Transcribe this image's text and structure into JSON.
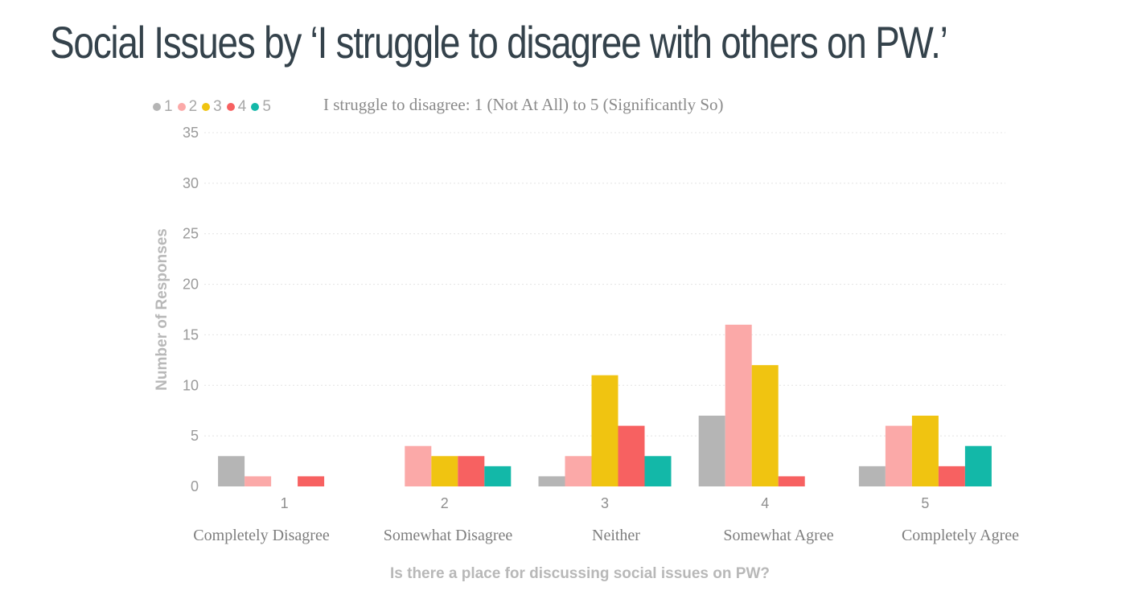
{
  "page": {
    "title": "Social Issues by ‘I struggle to disagree with others on PW.’"
  },
  "chart_data": {
    "type": "bar",
    "legend_title": "I struggle to disagree: 1 (Not At All) to 5 (Significantly So)",
    "legend_position": "top-left",
    "categories": [
      "1",
      "2",
      "3",
      "4",
      "5"
    ],
    "category_descriptions": [
      "Completely Disagree",
      "Somewhat Disagree",
      "Neither",
      "Somewhat Agree",
      "Completely Agree"
    ],
    "series": [
      {
        "name": "1",
        "color": "#b5b5b5",
        "values": [
          3,
          0,
          1,
          7,
          2
        ]
      },
      {
        "name": "2",
        "color": "#fba9a8",
        "values": [
          1,
          4,
          3,
          16,
          6
        ]
      },
      {
        "name": "3",
        "color": "#f0c411",
        "values": [
          0,
          3,
          11,
          12,
          7
        ]
      },
      {
        "name": "4",
        "color": "#f76161",
        "values": [
          1,
          3,
          6,
          1,
          2
        ]
      },
      {
        "name": "5",
        "color": "#13b8a8",
        "values": [
          0,
          2,
          3,
          0,
          4
        ]
      }
    ],
    "xlabel": "Is there a place for discussing social issues on PW?",
    "ylabel": "Number of Responses",
    "ylim": [
      0,
      35
    ],
    "yticks": [
      0,
      5,
      10,
      15,
      20,
      25,
      30,
      35
    ],
    "grid": true
  }
}
